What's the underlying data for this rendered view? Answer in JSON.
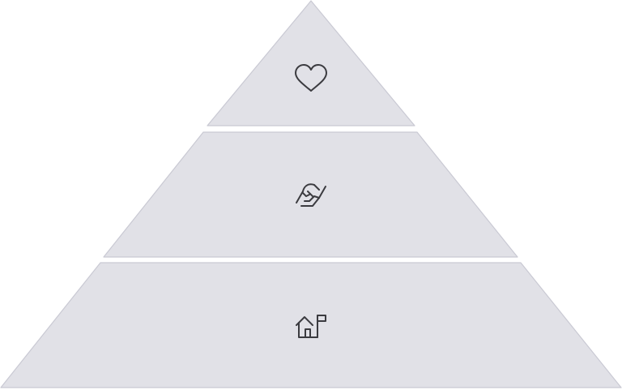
{
  "diagram": {
    "type": "pyramid",
    "tier_fill": "#e1e1e7",
    "tier_stroke": "#c9c9d3",
    "icon_color": "#3b3b40",
    "tiers": [
      {
        "position": "top",
        "icon": "heart-icon"
      },
      {
        "position": "middle",
        "icon": "handshake-icon"
      },
      {
        "position": "bottom",
        "icon": "home-flag-icon"
      }
    ]
  }
}
